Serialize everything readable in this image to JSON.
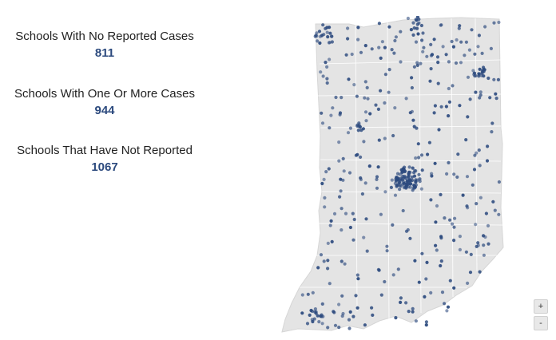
{
  "stats": [
    {
      "label": "Schools With No Reported Cases",
      "value": "811"
    },
    {
      "label": "Schools With One Or More Cases",
      "value": "944"
    },
    {
      "label": "Schools That Have Not Reported",
      "value": "1067"
    }
  ],
  "map": {
    "region": "Indiana",
    "fill_color": "#e4e4e4",
    "border_color": "#ffffff",
    "dot_color": "#2c4a7e"
  },
  "zoom": {
    "in_label": "+",
    "out_label": "-"
  }
}
